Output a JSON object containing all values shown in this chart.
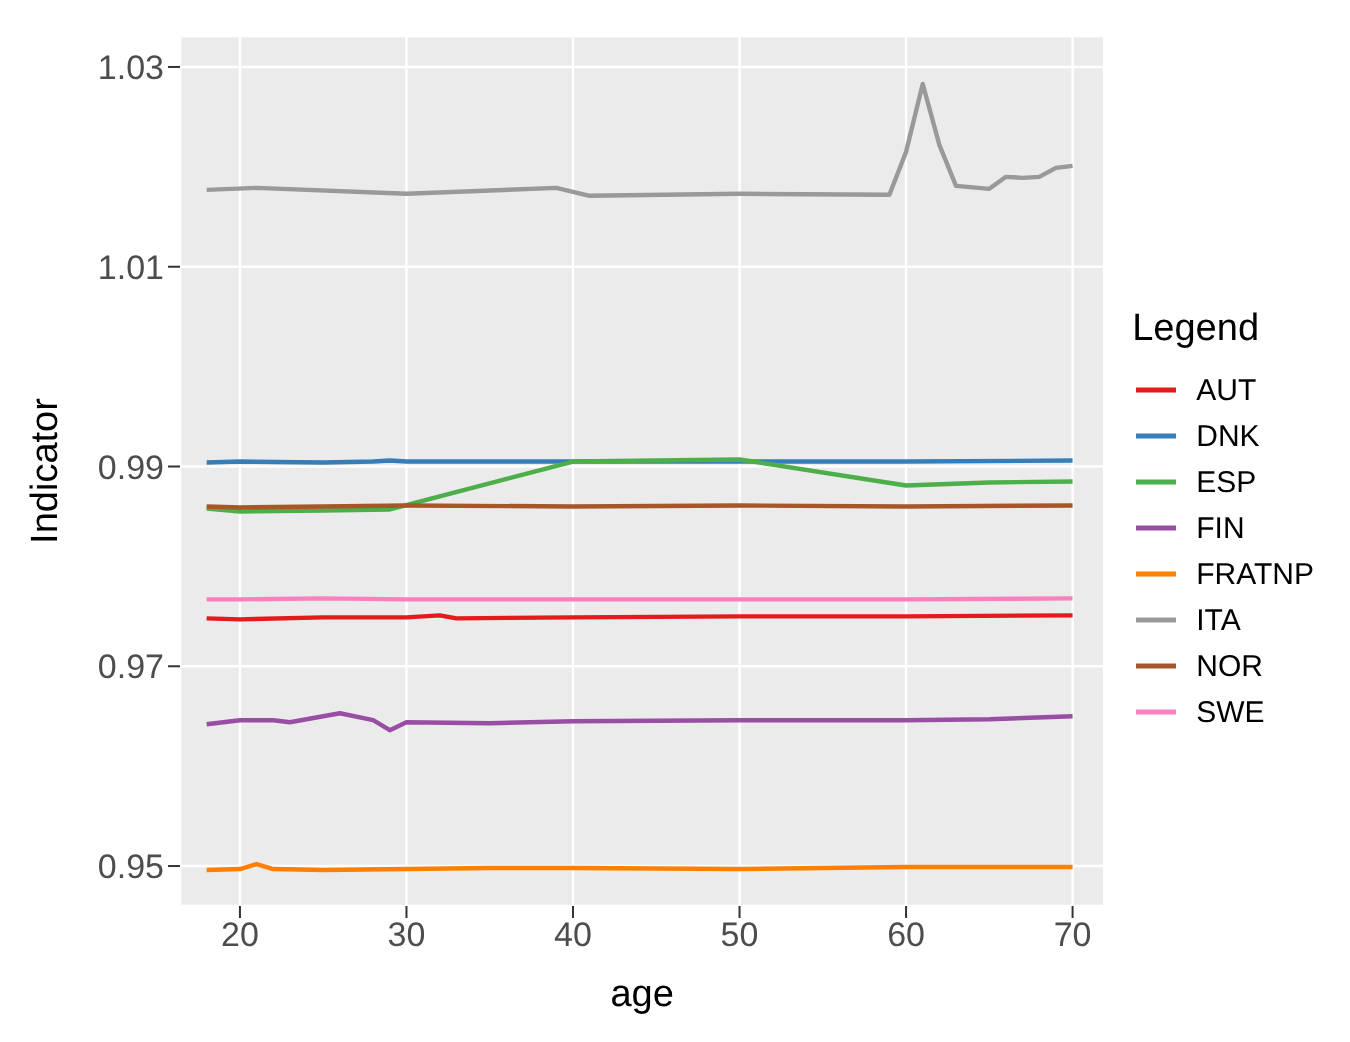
{
  "chart_data": {
    "type": "line",
    "xlabel": "age",
    "ylabel": "Indicator",
    "legend_title": "Legend",
    "legend": "right",
    "grid": true,
    "line_style": "solid",
    "marker": "none",
    "xlim": [
      16.4,
      71.9
    ],
    "xticks": [
      20,
      30,
      40,
      50,
      60,
      70
    ],
    "ylim": [
      0.946,
      1.0331
    ],
    "yticks": [
      0.95,
      0.97,
      0.99,
      1.01,
      1.03
    ],
    "series": [
      {
        "name": "AUT",
        "color": "#e41a1c",
        "x": [
          18,
          20,
          25,
          30,
          32,
          33,
          40,
          50,
          60,
          70
        ],
        "values": [
          0.9748,
          0.9747,
          0.9749,
          0.9749,
          0.9751,
          0.9748,
          0.9749,
          0.975,
          0.975,
          0.9751
        ]
      },
      {
        "name": "DNK",
        "color": "#377eb8",
        "x": [
          18,
          20,
          25,
          28,
          29,
          30,
          40,
          50,
          60,
          70
        ],
        "values": [
          0.9904,
          0.9905,
          0.9904,
          0.9905,
          0.9906,
          0.9905,
          0.9905,
          0.9905,
          0.9905,
          0.9906
        ]
      },
      {
        "name": "ESP",
        "color": "#4daf4a",
        "x": [
          18,
          20,
          25,
          29,
          40,
          50,
          60,
          65,
          70
        ],
        "values": [
          0.9858,
          0.9855,
          0.9856,
          0.9857,
          0.9905,
          0.9907,
          0.9881,
          0.9884,
          0.9885
        ]
      },
      {
        "name": "FIN",
        "color": "#984ea3",
        "x": [
          18,
          20,
          22,
          23,
          24,
          26,
          28,
          29,
          30,
          35,
          40,
          50,
          60,
          65,
          70
        ],
        "values": [
          0.9642,
          0.9646,
          0.9646,
          0.9644,
          0.9647,
          0.9653,
          0.9646,
          0.9636,
          0.9644,
          0.9643,
          0.9645,
          0.9646,
          0.9646,
          0.9647,
          0.965
        ]
      },
      {
        "name": "FRATNP",
        "color": "#ff7f00",
        "x": [
          18,
          20,
          21,
          22,
          25,
          30,
          35,
          40,
          50,
          60,
          70
        ],
        "values": [
          0.9496,
          0.9497,
          0.9502,
          0.9497,
          0.9496,
          0.9497,
          0.9498,
          0.9498,
          0.9497,
          0.9499,
          0.9499
        ]
      },
      {
        "name": "ITA",
        "color": "#999999",
        "x": [
          18,
          21,
          30,
          39,
          41,
          50,
          59,
          60,
          61,
          62,
          63,
          65,
          66,
          67,
          68,
          69,
          70
        ],
        "values": [
          1.0177,
          1.0179,
          1.0173,
          1.0179,
          1.0171,
          1.0173,
          1.0172,
          1.0215,
          1.0283,
          1.0222,
          1.0181,
          1.0178,
          1.019,
          1.0189,
          1.019,
          1.0199,
          1.0201
        ]
      },
      {
        "name": "NOR",
        "color": "#a65628",
        "x": [
          18,
          20,
          25,
          30,
          40,
          50,
          60,
          70
        ],
        "values": [
          0.986,
          0.9859,
          0.986,
          0.9861,
          0.986,
          0.9861,
          0.986,
          0.9861
        ]
      },
      {
        "name": "SWE",
        "color": "#f781bf",
        "x": [
          18,
          20,
          25,
          30,
          40,
          50,
          60,
          70
        ],
        "values": [
          0.9767,
          0.9767,
          0.9768,
          0.9767,
          0.9767,
          0.9767,
          0.9767,
          0.9768
        ]
      }
    ]
  }
}
